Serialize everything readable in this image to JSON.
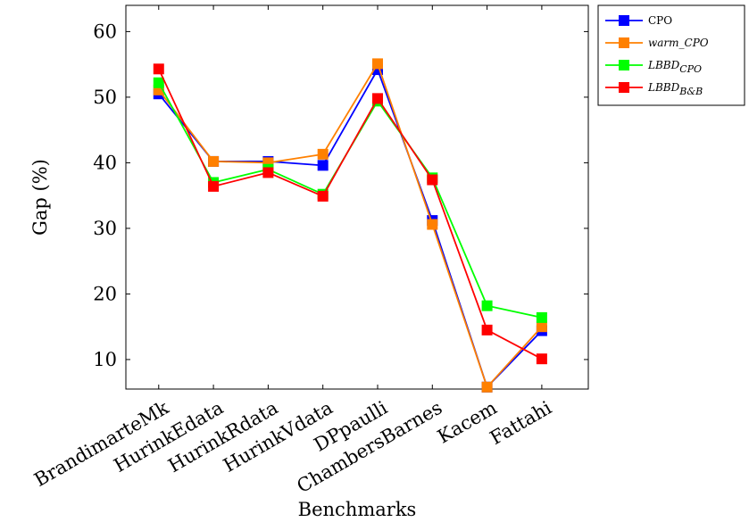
{
  "chart_data": {
    "type": "line",
    "title": "",
    "xlabel": "Benchmarks",
    "ylabel": "Gap (%)",
    "ylim": [
      5.5,
      64
    ],
    "yticks": [
      10,
      20,
      30,
      40,
      50,
      60
    ],
    "categories": [
      "BrandimarteMk",
      "HurinkEdata",
      "HurinkRdata",
      "HurinkVdata",
      "DPpaulli",
      "ChambersBarnes",
      "Kacem",
      "Fattahi"
    ],
    "grid": false,
    "legend_position": "outside-top-right",
    "series": [
      {
        "name": "CPO",
        "color": "#0000ff",
        "values": [
          50.5,
          40.2,
          40.2,
          39.6,
          54.2,
          31.2,
          5.8,
          14.4
        ]
      },
      {
        "name": "warm_CPO",
        "name_base": "warm",
        "name_sub": "CPO",
        "color": "#ff8000",
        "values": [
          51.1,
          40.2,
          40.0,
          41.3,
          55.1,
          30.6,
          5.8,
          15.0
        ]
      },
      {
        "name": "LBBD_CPO",
        "name_base": "LBBD",
        "name_sub": "CPO",
        "color": "#00ff00",
        "values": [
          52.2,
          37.0,
          39.0,
          35.2,
          49.4,
          37.7,
          18.2,
          16.4
        ]
      },
      {
        "name": "LBBD_B&B",
        "name_base": "LBBD",
        "name_sub": "B&B",
        "color": "#ff0000",
        "values": [
          54.3,
          36.4,
          38.5,
          34.9,
          49.8,
          37.4,
          14.5,
          10.1
        ]
      }
    ]
  }
}
